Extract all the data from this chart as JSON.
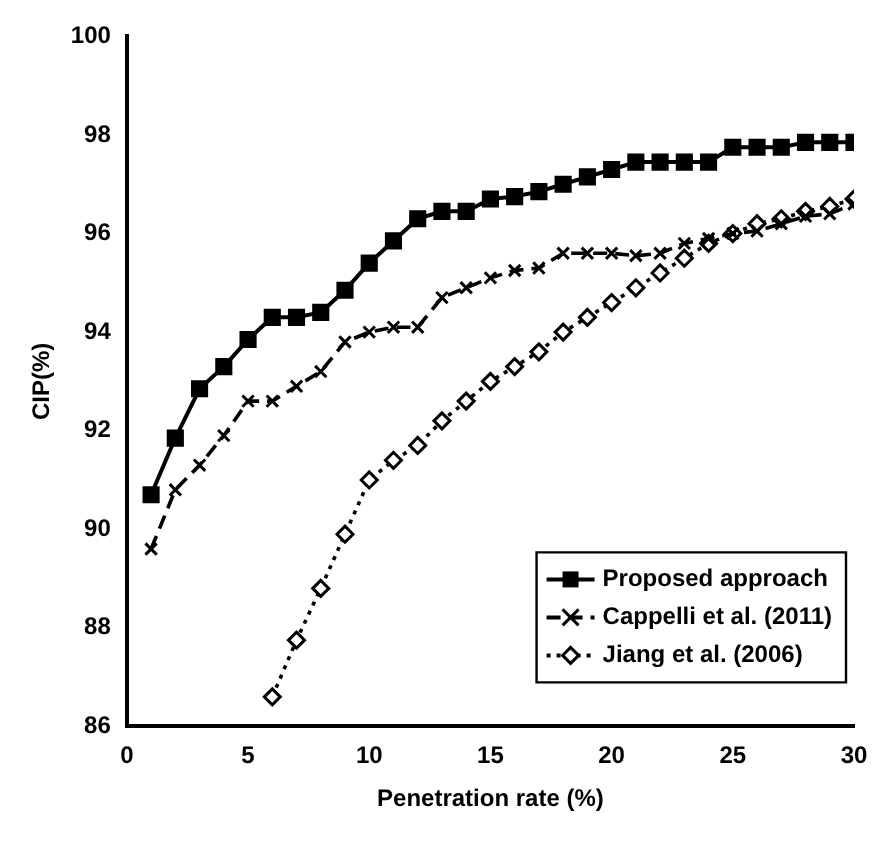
{
  "chart_data": {
    "type": "line",
    "xlabel": "Penetration rate (%)",
    "ylabel": "CIP(%)",
    "x": [
      1,
      2,
      3,
      4,
      5,
      6,
      7,
      8,
      9,
      10,
      11,
      12,
      13,
      14,
      15,
      16,
      17,
      18,
      19,
      20,
      21,
      22,
      23,
      24,
      25,
      26,
      27,
      28,
      29,
      30
    ],
    "xlim": [
      0,
      30
    ],
    "xticks": [
      0,
      5,
      10,
      15,
      20,
      25,
      30
    ],
    "ylim": [
      86,
      100
    ],
    "yticks": [
      86,
      88,
      90,
      92,
      94,
      96,
      98,
      100
    ],
    "grid": false,
    "legend": "bottom right",
    "series": [
      {
        "name": "Proposed approach",
        "color": "#000000",
        "marker": "square",
        "line_style": "solid",
        "values": [
          90.7,
          91.85,
          92.85,
          93.3,
          93.85,
          94.3,
          94.3,
          94.4,
          94.85,
          95.4,
          95.85,
          96.3,
          96.45,
          96.45,
          96.7,
          96.75,
          96.85,
          97.0,
          97.15,
          97.3,
          97.45,
          97.45,
          97.45,
          97.45,
          97.75,
          97.75,
          97.75,
          97.85,
          97.85,
          97.85
        ]
      },
      {
        "name": "Cappelli et al. (2011)",
        "color": "#000000",
        "marker": "cross",
        "line_style": "dashed",
        "values": [
          89.6,
          90.8,
          91.3,
          91.9,
          92.6,
          92.6,
          92.9,
          93.2,
          93.8,
          94.0,
          94.1,
          94.1,
          94.7,
          94.9,
          95.1,
          95.25,
          95.3,
          95.6,
          95.6,
          95.6,
          95.55,
          95.6,
          95.8,
          95.9,
          96.0,
          96.05,
          96.2,
          96.35,
          96.4,
          96.6
        ]
      },
      {
        "name": "Jiang et al. (2006)",
        "color": "#000000",
        "marker": "diamond",
        "line_style": "dotted",
        "values": [
          null,
          null,
          null,
          null,
          null,
          86.6,
          87.75,
          88.8,
          89.9,
          91.0,
          91.4,
          91.7,
          92.2,
          92.6,
          93.0,
          93.3,
          93.6,
          94.0,
          94.3,
          94.6,
          94.9,
          95.2,
          95.5,
          95.8,
          96.0,
          96.2,
          96.3,
          96.45,
          96.55,
          96.7
        ]
      }
    ]
  }
}
